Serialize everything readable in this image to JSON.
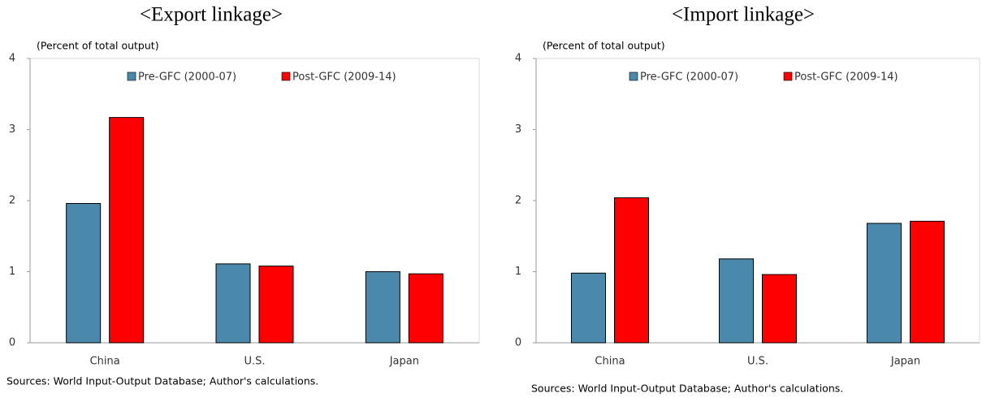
{
  "chart_data": [
    {
      "type": "bar",
      "title": "<Export linkage>",
      "y_label": "(Percent of total output)",
      "categories": [
        "China",
        "U.S.",
        "Japan"
      ],
      "series": [
        {
          "name": "Pre-GFC (2000-07)",
          "color": "#4a89ac",
          "values": [
            1.96,
            1.11,
            1.0
          ]
        },
        {
          "name": "Post-GFC (2009-14)",
          "color": "#ff0000",
          "values": [
            3.17,
            1.08,
            0.97
          ]
        }
      ],
      "ylim": [
        0,
        4
      ],
      "yticks": [
        0,
        1,
        2,
        3,
        4
      ],
      "legend": "top",
      "note": "Sources: World Input-Output Database; Author's calculations."
    },
    {
      "type": "bar",
      "title": "<Import linkage>",
      "y_label": "(Percent of total output)",
      "categories": [
        "China",
        "U.S.",
        "Japan"
      ],
      "series": [
        {
          "name": "Pre-GFC (2000-07)",
          "color": "#4a89ac",
          "values": [
            0.98,
            1.18,
            1.68
          ]
        },
        {
          "name": "Post-GFC (2009-14)",
          "color": "#ff0000",
          "values": [
            2.04,
            0.96,
            1.71
          ]
        }
      ],
      "ylim": [
        0,
        4
      ],
      "yticks": [
        0,
        1,
        2,
        3,
        4
      ],
      "legend": "top",
      "note": "Sources: World Input-Output Database; Author's calculations."
    }
  ]
}
